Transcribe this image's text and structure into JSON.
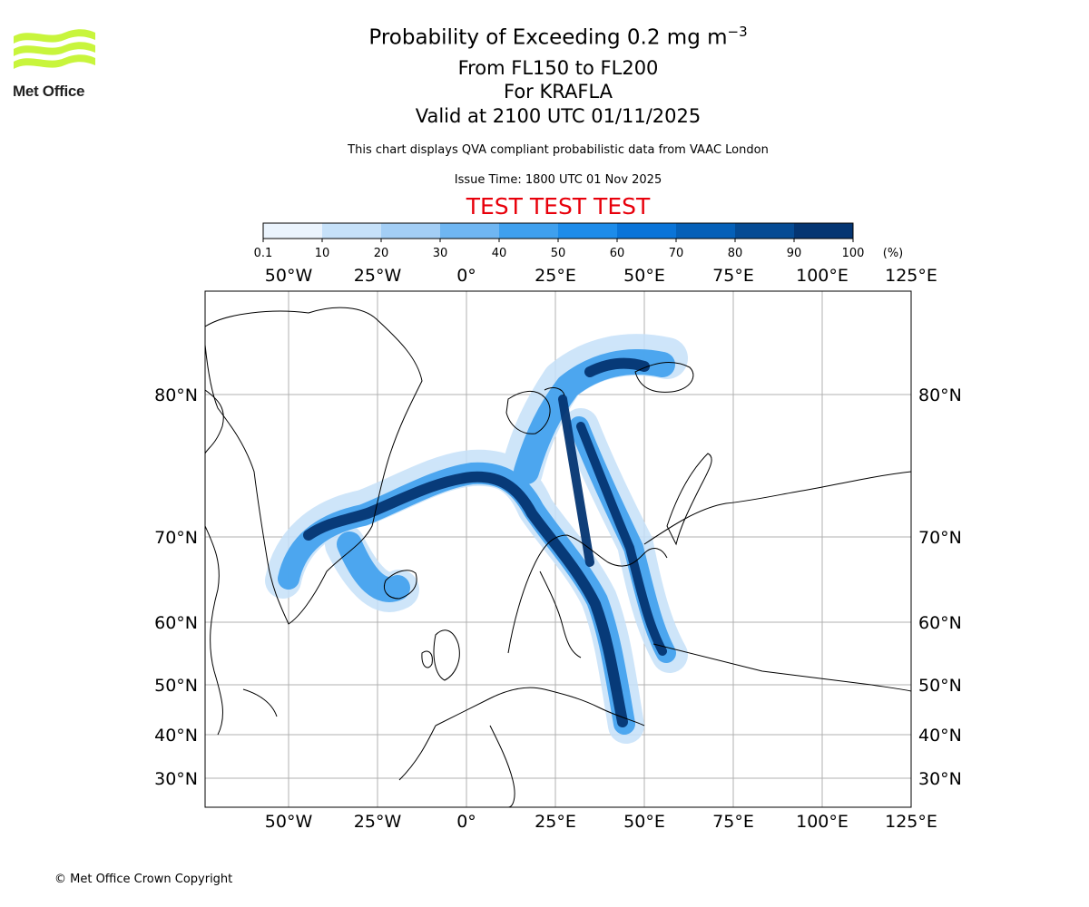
{
  "header": {
    "title_main": "Probability of Exceeding 0.2 mg m",
    "title_superscript": "−3",
    "level_range": "From FL150 to FL200",
    "volcano": "For KRAFLA",
    "valid_time": "Valid at 2100 UTC 01/11/2025",
    "description": "This chart displays QVA compliant probabilistic data from VAAC London",
    "issue_time": "Issue Time: 1800 UTC 01 Nov 2025",
    "test_banner": "TEST TEST TEST"
  },
  "logo": {
    "text": "Met Office",
    "color": "#c8f53c"
  },
  "colorbar": {
    "ticks": [
      "0.1",
      "10",
      "20",
      "30",
      "40",
      "50",
      "60",
      "70",
      "80",
      "90",
      "100"
    ],
    "unit": "(%)",
    "colors": [
      "#ebf4fd",
      "#c6e1f9",
      "#a3cef5",
      "#6fb6f2",
      "#3fa0ee",
      "#1d8cea",
      "#0a74d8",
      "#0560b8",
      "#054b94",
      "#043572"
    ]
  },
  "map": {
    "lon_labels": [
      "50°W",
      "25°W",
      "0°",
      "25°E",
      "50°E",
      "75°E",
      "100°E",
      "125°E"
    ],
    "lat_labels": [
      "80°N",
      "70°N",
      "60°N",
      "50°N",
      "40°N",
      "30°N"
    ],
    "gridlines": true
  },
  "footer": {
    "copyright": "© Met Office Crown Copyright"
  }
}
